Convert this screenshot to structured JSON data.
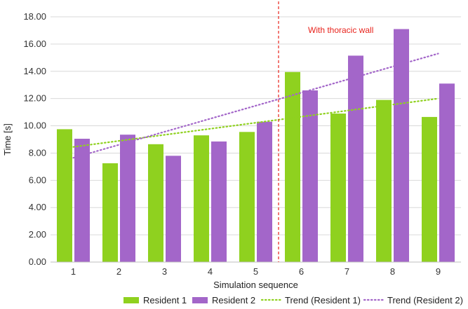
{
  "chart_data": {
    "type": "bar",
    "title": "",
    "xlabel": "Simulation sequence",
    "ylabel": "Time [s]",
    "ylim": [
      0,
      18
    ],
    "ytick_step": 2,
    "ytick_labels": [
      "0.00",
      "2.00",
      "4.00",
      "6.00",
      "8.00",
      "10.00",
      "12.00",
      "14.00",
      "16.00",
      "18.00"
    ],
    "categories": [
      "1",
      "2",
      "3",
      "4",
      "5",
      "6",
      "7",
      "8",
      "9"
    ],
    "grid": true,
    "series": [
      {
        "name": "Resident 1",
        "color": "#8fd11f",
        "values": [
          9.75,
          7.25,
          8.65,
          9.3,
          9.55,
          13.95,
          10.9,
          11.9,
          10.65
        ]
      },
      {
        "name": "Resident 2",
        "color": "#a366c9",
        "values": [
          9.05,
          9.35,
          7.8,
          8.85,
          10.3,
          12.6,
          15.15,
          17.1,
          13.1
        ]
      }
    ],
    "trendlines": [
      {
        "name": "Trend (Resident 1)",
        "color": "#8fd11f",
        "start": 8.45,
        "end": 12.0
      },
      {
        "name": "Trend (Resident 2)",
        "color": "#a366c9",
        "start": 7.65,
        "end": 15.3
      }
    ],
    "annotation": {
      "text": "With thoracic wall",
      "color": "#e8231c",
      "divider_between": [
        "5",
        "6"
      ]
    },
    "legend_position": "bottom-right"
  }
}
